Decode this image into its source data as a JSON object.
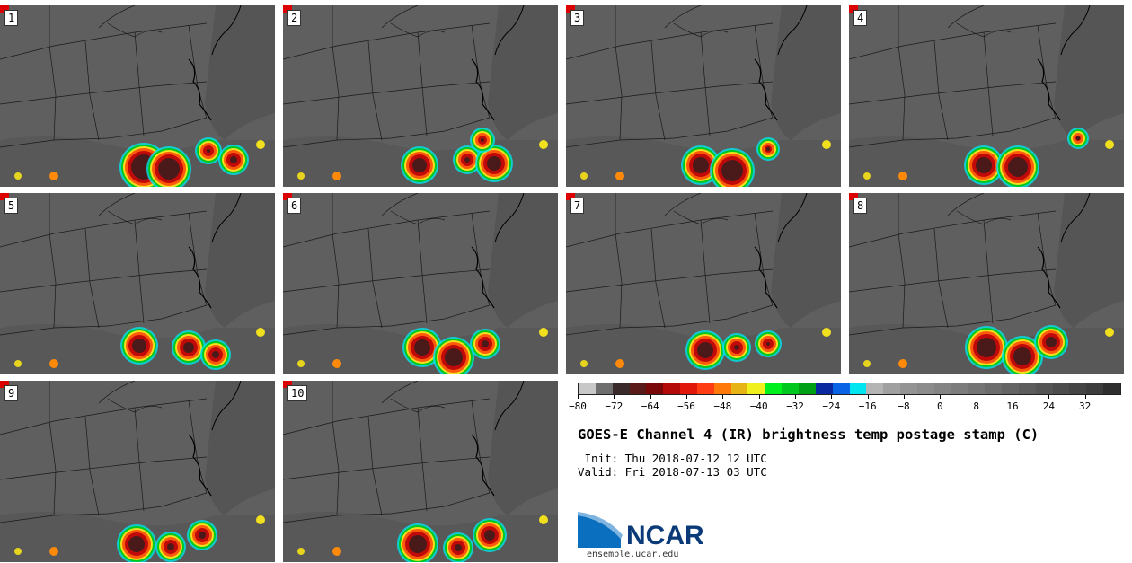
{
  "panels": [
    {
      "label": "1"
    },
    {
      "label": "2"
    },
    {
      "label": "3"
    },
    {
      "label": "4"
    },
    {
      "label": "5"
    },
    {
      "label": "6"
    },
    {
      "label": "7"
    },
    {
      "label": "8"
    },
    {
      "label": "9"
    },
    {
      "label": "10"
    }
  ],
  "colorbar": {
    "colors": [
      "#c8c8c8",
      "#6e6e6e",
      "#3a2a2a",
      "#5a1a1a",
      "#7a0808",
      "#b40a0a",
      "#e1170a",
      "#ff3c14",
      "#ff780a",
      "#e6b414",
      "#f0f01e",
      "#00f01e",
      "#00c81e",
      "#00a014",
      "#0a28a0",
      "#0a64e6",
      "#00e6f0",
      "#b4b4b4",
      "#a0a0a0",
      "#949494",
      "#8c8c8c",
      "#848484",
      "#7c7c7c",
      "#747474",
      "#6c6c6c",
      "#646464",
      "#5c5c5c",
      "#545454",
      "#4c4c4c",
      "#444444",
      "#3c3c3c",
      "#2e2e2e"
    ],
    "ticks": [
      "−80",
      "−72",
      "−64",
      "−56",
      "−48",
      "−40",
      "−32",
      "−24",
      "−16",
      "−8",
      "0",
      "8",
      "16",
      "24",
      "32"
    ]
  },
  "title": "GOES-E Channel 4 (IR) brightness temp postage stamp (C)",
  "init_line": " Init: Thu 2018-07-12 12 UTC",
  "valid_line": "Valid: Fri 2018-07-13 03 UTC",
  "logo_text": "NCAR",
  "url": "ensemble.ucar.edu"
}
